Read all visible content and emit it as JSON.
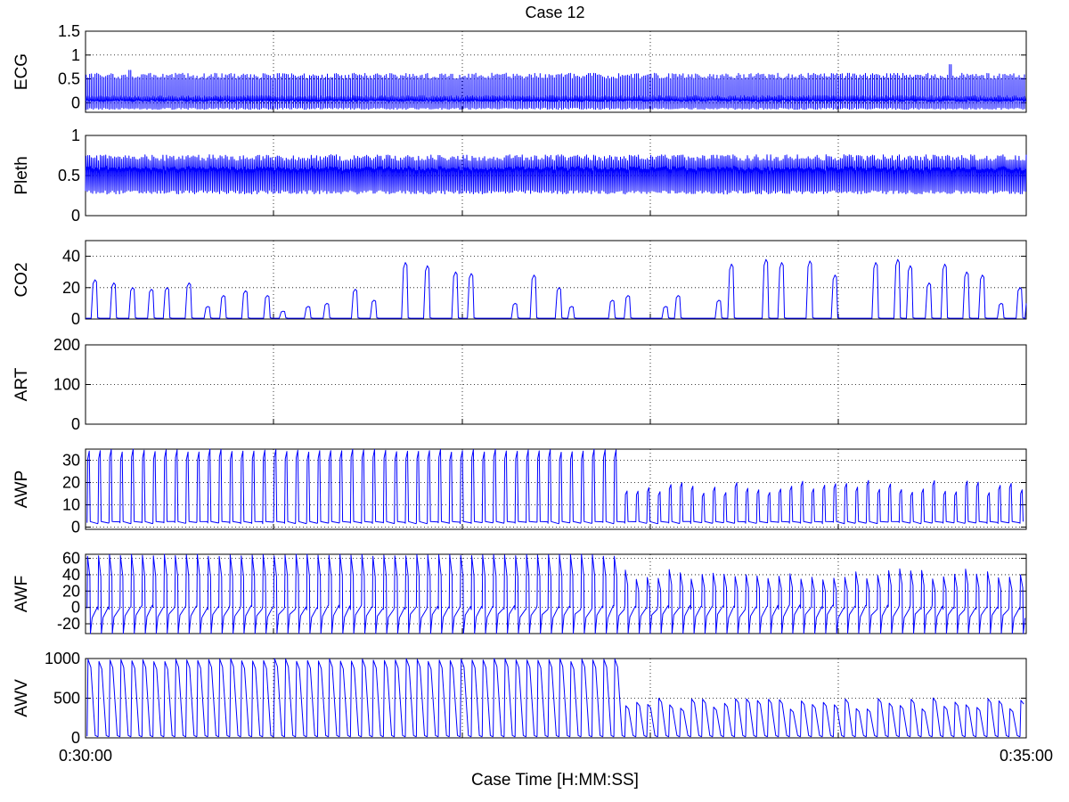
{
  "chart_data": {
    "type": "line",
    "title": "Case 12",
    "xlabel": "Case Time [H:MM:SS]",
    "x_start_label": "0:30:00",
    "x_end_label": "0:35:00",
    "x_range_seconds": [
      0,
      300
    ],
    "grid": "dotted",
    "line_color": "#0000ff",
    "panels": [
      {
        "ylabel": "ECG",
        "ylim": [
          -0.2,
          1.5
        ],
        "yticks": [
          0,
          0.5,
          1,
          1.5
        ],
        "yticklabels": [
          "0",
          "0.5",
          "1",
          "1.5"
        ],
        "series": {
          "kind": "ecg",
          "beat_period_s": 0.57,
          "peak": 0.56,
          "baseline": 0.05,
          "trough": -0.1,
          "events": [
            {
              "t": 13.7,
              "peak": 0.68
            },
            {
              "t": 275.5,
              "peak": 0.8
            }
          ]
        }
      },
      {
        "ylabel": "Pleth",
        "ylim": [
          0,
          1
        ],
        "yticks": [
          0,
          0.5,
          1
        ],
        "yticklabels": [
          "0",
          "0.5",
          "1"
        ],
        "series": {
          "kind": "pleth",
          "beat_period_s": 0.57,
          "max": 0.76,
          "min": 0.27
        }
      },
      {
        "ylabel": "CO2",
        "ylim": [
          0,
          50
        ],
        "yticks": [
          0,
          20,
          40
        ],
        "yticklabels": [
          "0",
          "20",
          "40"
        ],
        "series": {
          "kind": "co2_breaths",
          "breaths_t": [
            3,
            9,
            15,
            21,
            26,
            33,
            39,
            44,
            51,
            58,
            63,
            71,
            77,
            86,
            92,
            102,
            109,
            118,
            123,
            137,
            143,
            151,
            155,
            168,
            173,
            185,
            189,
            202,
            206,
            217,
            222,
            231,
            239,
            252,
            259,
            263,
            269,
            274,
            281,
            286,
            292,
            298
          ],
          "peak_values": [
            25,
            23,
            20,
            19,
            20,
            23,
            8,
            15,
            18,
            15,
            5,
            8,
            10,
            19,
            12,
            36,
            34,
            30,
            29,
            10,
            28,
            20,
            8,
            12,
            15,
            8,
            15,
            12,
            35,
            38,
            36,
            37,
            28,
            36,
            38,
            34,
            23,
            35,
            30,
            28,
            10,
            20
          ]
        }
      },
      {
        "ylabel": "ART",
        "ylim": [
          0,
          200
        ],
        "yticks": [
          0,
          100,
          200
        ],
        "yticklabels": [
          "0",
          "100",
          "200"
        ],
        "series": {
          "kind": "empty"
        }
      },
      {
        "ylabel": "AWP",
        "ylim": [
          -1,
          35
        ],
        "yticks": [
          0,
          10,
          20,
          30
        ],
        "yticklabels": [
          "0",
          "10",
          "20",
          "30"
        ],
        "series": {
          "kind": "awp",
          "breath_period_s": 3.5,
          "peak_early": 35,
          "peak_late": 20,
          "baseline": 1.5
        }
      },
      {
        "ylabel": "AWF",
        "ylim": [
          -32,
          65
        ],
        "yticks": [
          -20,
          0,
          20,
          40,
          60
        ],
        "yticklabels": [
          "-20",
          "0",
          "20",
          "40",
          "60"
        ],
        "series": {
          "kind": "awf",
          "breath_period_s": 3.5,
          "peak_early": 65,
          "peak_late": 45,
          "trough": -32
        }
      },
      {
        "ylabel": "AWV",
        "ylim": [
          0,
          1000
        ],
        "yticks": [
          0,
          500,
          1000
        ],
        "yticklabels": [
          "0",
          "500",
          "1000"
        ],
        "series": {
          "kind": "awv",
          "breath_period_s": 3.5,
          "peak_early": 1000,
          "peak_late": 480
        }
      }
    ]
  }
}
